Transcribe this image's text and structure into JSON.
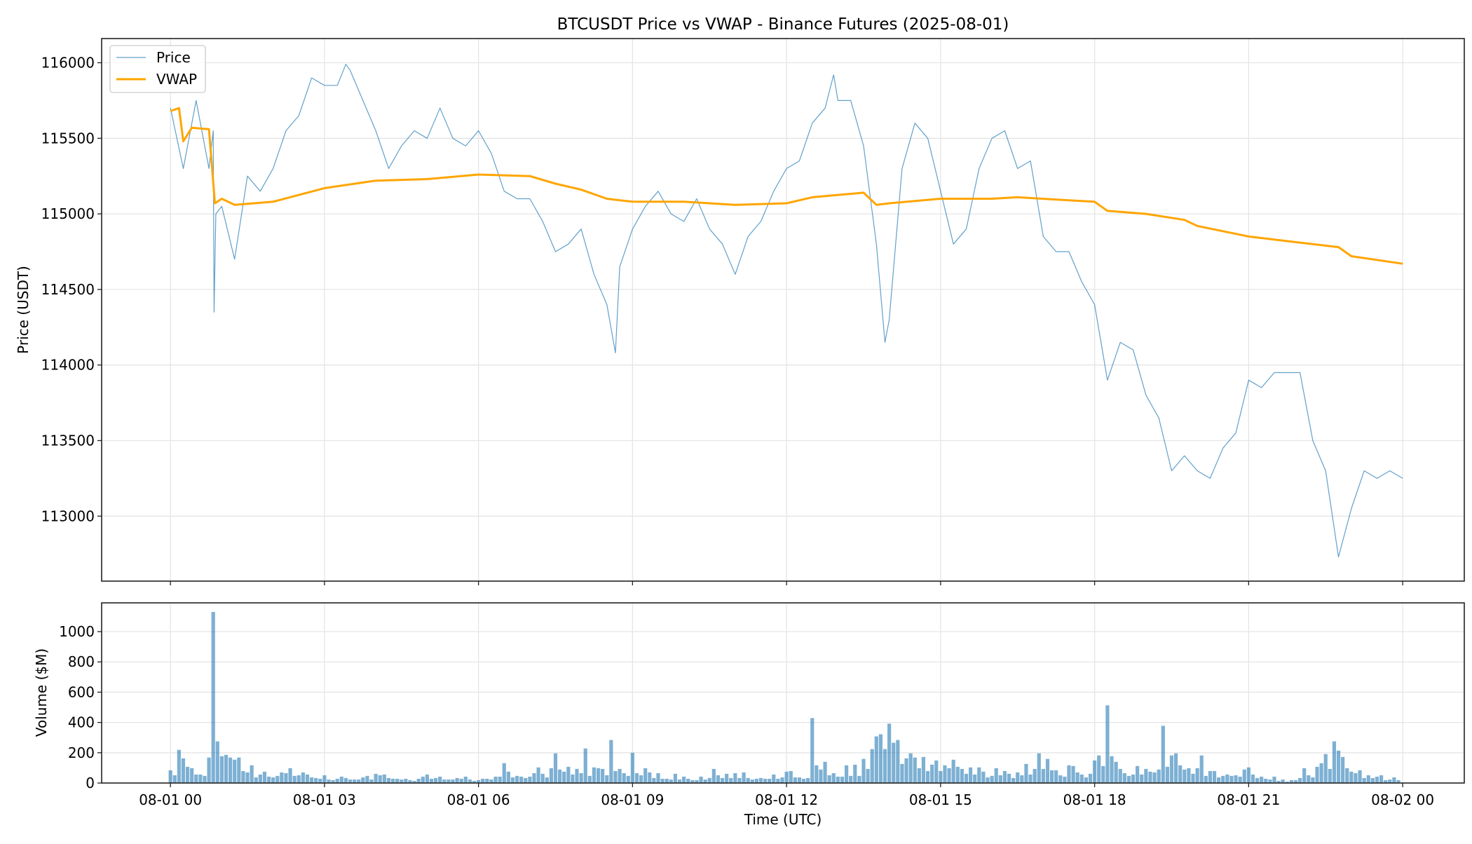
{
  "chart_data": [
    {
      "type": "line",
      "title": "BTCUSDT Price vs VWAP - Binance Futures (2025-08-01)",
      "xlabel": "",
      "ylabel": "Price (USDT)",
      "xlim_hours": [
        -1.34,
        25.2
      ],
      "ylim": [
        112570,
        116160
      ],
      "yticks": [
        113000,
        113500,
        114000,
        114500,
        115000,
        115500,
        116000
      ],
      "xticks": [
        "08-01 00",
        "08-01 03",
        "08-01 06",
        "08-01 09",
        "08-01 12",
        "08-01 15",
        "08-01 18",
        "08-01 21",
        "08-02 00"
      ],
      "grid": true,
      "legend": {
        "placement": "top-left",
        "entries": [
          "Price",
          "VWAP"
        ]
      },
      "colors": {
        "price": "#1f77b4",
        "vwap": "#ffa500"
      },
      "series": [
        {
          "name": "Price",
          "points": [
            [
              "00:00",
              115700
            ],
            [
              "00:15",
              115300
            ],
            [
              "00:30",
              115750
            ],
            [
              "00:45",
              115300
            ],
            [
              "00:50",
              115550
            ],
            [
              "00:51",
              114350
            ],
            [
              "00:53",
              115000
            ],
            [
              "01:00",
              115050
            ],
            [
              "01:15",
              114700
            ],
            [
              "01:30",
              115250
            ],
            [
              "01:45",
              115150
            ],
            [
              "02:00",
              115300
            ],
            [
              "02:15",
              115550
            ],
            [
              "02:30",
              115650
            ],
            [
              "02:45",
              115900
            ],
            [
              "03:00",
              115850
            ],
            [
              "03:15",
              115850
            ],
            [
              "03:25",
              115990
            ],
            [
              "03:30",
              115950
            ],
            [
              "03:45",
              115750
            ],
            [
              "04:00",
              115550
            ],
            [
              "04:15",
              115300
            ],
            [
              "04:30",
              115450
            ],
            [
              "04:45",
              115550
            ],
            [
              "05:00",
              115500
            ],
            [
              "05:15",
              115700
            ],
            [
              "05:30",
              115500
            ],
            [
              "05:45",
              115450
            ],
            [
              "06:00",
              115550
            ],
            [
              "06:15",
              115400
            ],
            [
              "06:30",
              115150
            ],
            [
              "06:45",
              115100
            ],
            [
              "07:00",
              115100
            ],
            [
              "07:15",
              114950
            ],
            [
              "07:30",
              114750
            ],
            [
              "07:45",
              114800
            ],
            [
              "08:00",
              114900
            ],
            [
              "08:15",
              114600
            ],
            [
              "08:30",
              114400
            ],
            [
              "08:40",
              114080
            ],
            [
              "08:45",
              114650
            ],
            [
              "09:00",
              114900
            ],
            [
              "09:15",
              115050
            ],
            [
              "09:30",
              115150
            ],
            [
              "09:45",
              115000
            ],
            [
              "10:00",
              114950
            ],
            [
              "10:15",
              115100
            ],
            [
              "10:30",
              114900
            ],
            [
              "10:45",
              114800
            ],
            [
              "11:00",
              114600
            ],
            [
              "11:15",
              114850
            ],
            [
              "11:30",
              114950
            ],
            [
              "11:45",
              115150
            ],
            [
              "12:00",
              115300
            ],
            [
              "12:15",
              115350
            ],
            [
              "12:30",
              115600
            ],
            [
              "12:45",
              115700
            ],
            [
              "12:55",
              115920
            ],
            [
              "13:00",
              115750
            ],
            [
              "13:15",
              115750
            ],
            [
              "13:30",
              115450
            ],
            [
              "13:45",
              114800
            ],
            [
              "13:55",
              114150
            ],
            [
              "14:00",
              114300
            ],
            [
              "14:15",
              115300
            ],
            [
              "14:30",
              115600
            ],
            [
              "14:45",
              115500
            ],
            [
              "15:00",
              115150
            ],
            [
              "15:15",
              114800
            ],
            [
              "15:30",
              114900
            ],
            [
              "15:45",
              115300
            ],
            [
              "16:00",
              115500
            ],
            [
              "16:15",
              115550
            ],
            [
              "16:30",
              115300
            ],
            [
              "16:45",
              115350
            ],
            [
              "17:00",
              114850
            ],
            [
              "17:15",
              114750
            ],
            [
              "17:30",
              114750
            ],
            [
              "17:45",
              114550
            ],
            [
              "18:00",
              114400
            ],
            [
              "18:15",
              113900
            ],
            [
              "18:30",
              114150
            ],
            [
              "18:45",
              114100
            ],
            [
              "19:00",
              113800
            ],
            [
              "19:15",
              113650
            ],
            [
              "19:30",
              113300
            ],
            [
              "19:45",
              113400
            ],
            [
              "20:00",
              113300
            ],
            [
              "20:15",
              113250
            ],
            [
              "20:30",
              113450
            ],
            [
              "20:45",
              113550
            ],
            [
              "21:00",
              113900
            ],
            [
              "21:15",
              113850
            ],
            [
              "21:30",
              113950
            ],
            [
              "21:45",
              113950
            ],
            [
              "22:00",
              113950
            ],
            [
              "22:15",
              113500
            ],
            [
              "22:30",
              113300
            ],
            [
              "22:45",
              112730
            ],
            [
              "23:00",
              113050
            ],
            [
              "23:15",
              113300
            ],
            [
              "23:30",
              113250
            ],
            [
              "23:45",
              113300
            ],
            [
              "24:00",
              113250
            ]
          ]
        },
        {
          "name": "VWAP",
          "points": [
            [
              "00:00",
              115680
            ],
            [
              "00:10",
              115700
            ],
            [
              "00:15",
              115480
            ],
            [
              "00:25",
              115570
            ],
            [
              "00:45",
              115560
            ],
            [
              "00:52",
              115070
            ],
            [
              "01:00",
              115100
            ],
            [
              "01:15",
              115060
            ],
            [
              "02:00",
              115080
            ],
            [
              "03:00",
              115170
            ],
            [
              "04:00",
              115220
            ],
            [
              "05:00",
              115230
            ],
            [
              "06:00",
              115260
            ],
            [
              "07:00",
              115250
            ],
            [
              "07:30",
              115200
            ],
            [
              "08:00",
              115160
            ],
            [
              "08:30",
              115100
            ],
            [
              "09:00",
              115080
            ],
            [
              "10:00",
              115080
            ],
            [
              "11:00",
              115060
            ],
            [
              "12:00",
              115070
            ],
            [
              "12:30",
              115110
            ],
            [
              "13:30",
              115140
            ],
            [
              "13:45",
              115060
            ],
            [
              "14:00",
              115070
            ],
            [
              "15:00",
              115100
            ],
            [
              "16:00",
              115100
            ],
            [
              "16:30",
              115110
            ],
            [
              "17:30",
              115090
            ],
            [
              "18:00",
              115080
            ],
            [
              "18:15",
              115020
            ],
            [
              "19:00",
              115000
            ],
            [
              "19:45",
              114960
            ],
            [
              "20:00",
              114920
            ],
            [
              "21:00",
              114850
            ],
            [
              "22:00",
              114810
            ],
            [
              "22:45",
              114780
            ],
            [
              "23:00",
              114720
            ],
            [
              "24:00",
              114670
            ]
          ]
        }
      ]
    },
    {
      "type": "bar",
      "xlabel": "Time (UTC)",
      "ylabel": "Volume ($M)",
      "ylim": [
        0,
        1190
      ],
      "yticks": [
        0,
        200,
        400,
        600,
        800,
        1000
      ],
      "xticks": [
        "08-01 00",
        "08-01 03",
        "08-01 06",
        "08-01 09",
        "08-01 12",
        "08-01 15",
        "08-01 18",
        "08-01 21",
        "08-02 00"
      ],
      "bar_interval_minutes": 5,
      "start": "08-01 00:00",
      "grid": true,
      "color": "#1f77b4",
      "values": [
        84,
        51,
        219,
        163,
        107,
        98,
        56,
        56,
        47,
        168,
        1130,
        275,
        177,
        186,
        168,
        154,
        168,
        79,
        70,
        117,
        37,
        56,
        75,
        42,
        37,
        47,
        70,
        65,
        98,
        47,
        51,
        70,
        56,
        37,
        33,
        28,
        51,
        23,
        19,
        28,
        42,
        33,
        23,
        23,
        23,
        37,
        47,
        23,
        61,
        51,
        56,
        33,
        28,
        28,
        23,
        28,
        19,
        14,
        28,
        42,
        56,
        28,
        33,
        42,
        23,
        23,
        23,
        33,
        28,
        42,
        23,
        14,
        19,
        28,
        28,
        23,
        42,
        42,
        131,
        75,
        37,
        47,
        42,
        33,
        42,
        65,
        103,
        61,
        37,
        98,
        196,
        89,
        75,
        107,
        56,
        93,
        65,
        228,
        47,
        103,
        98,
        93,
        51,
        284,
        79,
        93,
        65,
        47,
        200,
        65,
        51,
        98,
        70,
        33,
        65,
        28,
        28,
        23,
        61,
        23,
        42,
        28,
        19,
        19,
        42,
        23,
        33,
        93,
        51,
        33,
        61,
        33,
        65,
        33,
        70,
        33,
        23,
        28,
        33,
        28,
        28,
        56,
        28,
        37,
        75,
        79,
        37,
        37,
        28,
        33,
        429,
        117,
        89,
        140,
        51,
        65,
        42,
        42,
        117,
        47,
        121,
        47,
        159,
        93,
        224,
        308,
        322,
        224,
        392,
        266,
        284,
        126,
        163,
        196,
        168,
        98,
        172,
        79,
        121,
        149,
        79,
        117,
        98,
        154,
        107,
        93,
        61,
        103,
        56,
        103,
        75,
        37,
        47,
        98,
        51,
        79,
        61,
        33,
        70,
        51,
        126,
        56,
        93,
        196,
        93,
        159,
        84,
        84,
        51,
        42,
        117,
        112,
        70,
        56,
        37,
        61,
        149,
        182,
        112,
        513,
        177,
        140,
        93,
        65,
        47,
        56,
        112,
        56,
        93,
        75,
        70,
        89,
        378,
        107,
        182,
        196,
        117,
        89,
        98,
        61,
        98,
        182,
        47,
        79,
        79,
        37,
        47,
        56,
        47,
        51,
        42,
        89,
        103,
        56,
        33,
        42,
        28,
        23,
        42,
        14,
        23,
        9,
        19,
        19,
        33,
        98,
        51,
        37,
        107,
        131,
        191,
        93,
        275,
        214,
        172,
        98,
        75,
        65,
        84,
        33,
        51,
        33,
        42,
        51,
        19,
        23,
        37,
        19
      ]
    }
  ]
}
